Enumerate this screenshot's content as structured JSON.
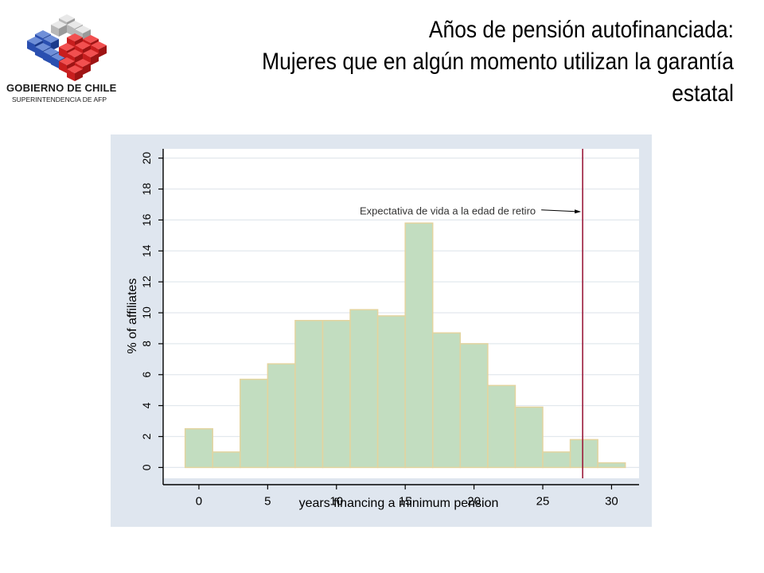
{
  "logo": {
    "name": "GOBIERNO DE CHILE",
    "subtitle": "SUPERINTENDENCIA DE AFP"
  },
  "title": {
    "line1": "Años de pensión autofinanciada:",
    "line2": "Mujeres que en algún momento utilizan la garantía",
    "line3": "estatal"
  },
  "colors": {
    "panel_bg": "#dfe6ef",
    "bar_fill": "#c2ddc0",
    "bar_edge": "#e3d49f",
    "reference_line": "#9b1b3b",
    "grid": "#e2e8ed"
  },
  "chart_data": {
    "type": "bar",
    "xlabel": "years financing a minimum pension",
    "ylabel": "% of affiliates",
    "xlim": [
      -2.6,
      32
    ],
    "ylim": [
      -0.7,
      20.6
    ],
    "x_ticks": [
      "0",
      "5",
      "10",
      "15",
      "20",
      "25",
      "30"
    ],
    "y_ticks": [
      "0",
      "2",
      "4",
      "6",
      "8",
      "10",
      "12",
      "14",
      "16",
      "18",
      "20"
    ],
    "grid": true,
    "bin_width": 2,
    "bin_starts": [
      -1,
      1,
      3,
      5,
      7,
      9,
      11,
      13,
      15,
      17,
      19,
      21,
      23,
      25,
      27,
      29
    ],
    "values": [
      2.5,
      1.0,
      5.7,
      6.7,
      9.5,
      9.5,
      10.2,
      9.8,
      15.8,
      8.7,
      8.0,
      5.3,
      3.9,
      1.0,
      1.8,
      0.3
    ],
    "reference_line": {
      "x": 27.9,
      "label": "Expectativa de vida a la edad de retiro"
    }
  }
}
